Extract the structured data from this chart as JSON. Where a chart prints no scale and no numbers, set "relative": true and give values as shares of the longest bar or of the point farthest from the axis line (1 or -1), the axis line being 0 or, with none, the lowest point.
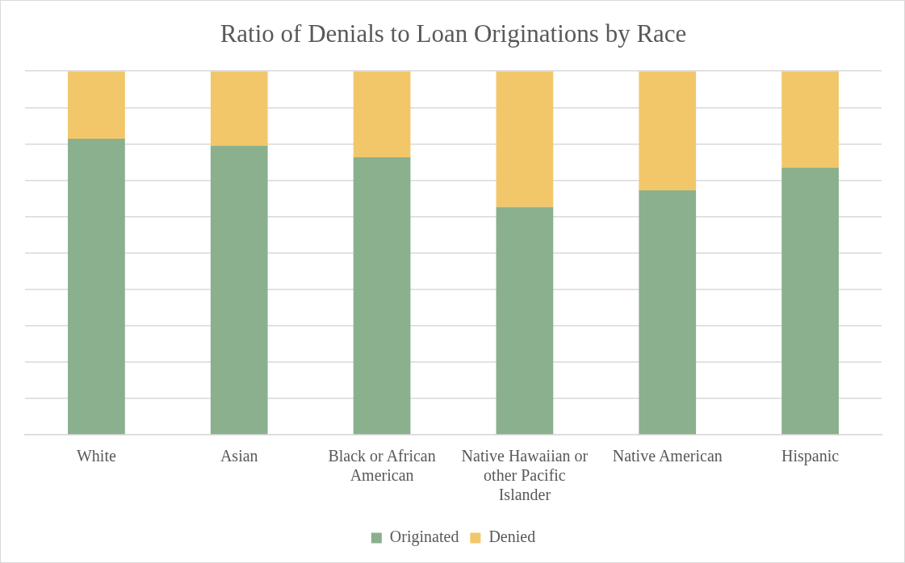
{
  "chart_data": {
    "type": "bar",
    "title": "Ratio of Denials to Loan Originations by Race",
    "categories": [
      "White",
      "Asian",
      "Black or African American",
      "Native Hawaiian or other Pacific Islander",
      "Native American",
      "Hispanic"
    ],
    "stacked": true,
    "relative": true,
    "grid": "y",
    "legend": "bottom",
    "series": [
      {
        "name": "Originated",
        "color": "#8ab08e",
        "values": [
          0.814,
          0.795,
          0.763,
          0.626,
          0.672,
          0.735
        ]
      },
      {
        "name": "Denied",
        "color": "#f2c76a",
        "values": [
          0.186,
          0.205,
          0.237,
          0.374,
          0.328,
          0.265
        ]
      }
    ]
  }
}
